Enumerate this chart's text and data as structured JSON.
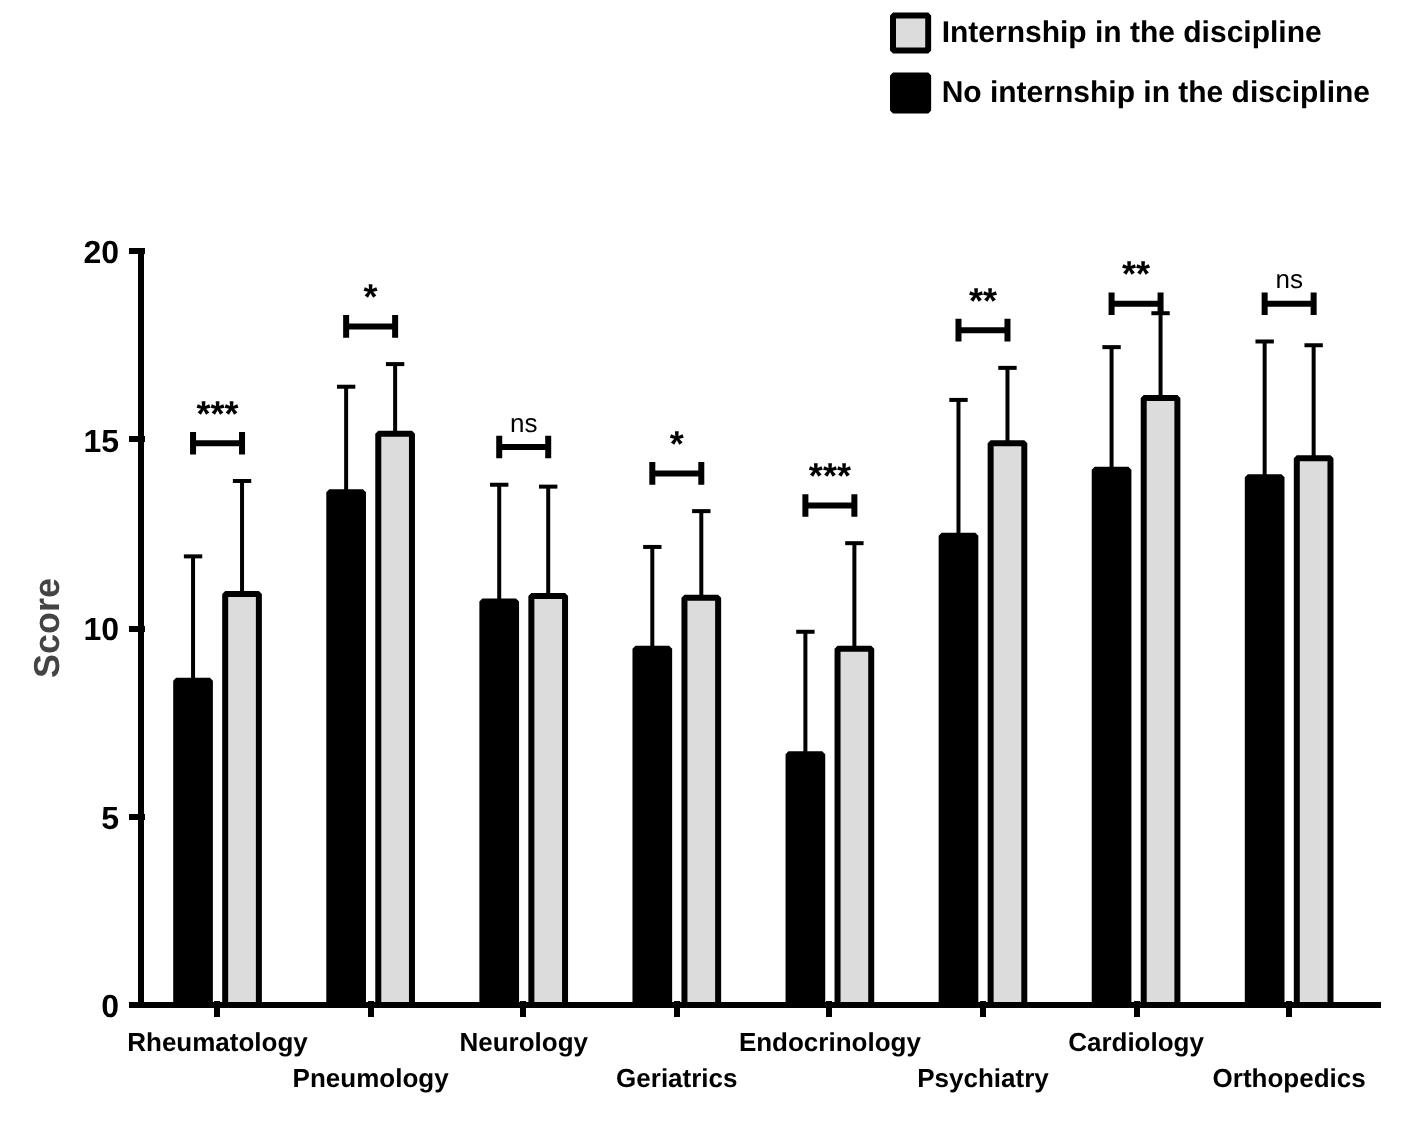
{
  "chart_data": {
    "type": "bar",
    "ylabel": "Score",
    "categories": [
      "Rheumatology",
      "Pneumology",
      "Neurology",
      "Geriatrics",
      "Endocrinology",
      "Psychiatry",
      "Cardiology",
      "Orthopedics"
    ],
    "series": [
      {
        "name": "No internship in the discipline",
        "color": "#000000",
        "values": [
          8.6,
          13.6,
          10.7,
          9.45,
          6.65,
          12.45,
          14.2,
          14.0
        ],
        "errors": [
          [
            8.6,
            11.9
          ],
          [
            13.6,
            16.4
          ],
          [
            10.7,
            13.8
          ],
          [
            9.45,
            12.15
          ],
          [
            6.65,
            9.9
          ],
          [
            12.45,
            16.05
          ],
          [
            14.2,
            17.45
          ],
          [
            14.0,
            17.6
          ]
        ]
      },
      {
        "name": "Internship in the discipline",
        "color": "#dcdcdc",
        "values": [
          10.9,
          15.15,
          10.85,
          10.8,
          9.45,
          14.9,
          16.1,
          14.5
        ],
        "errors": [
          [
            10.9,
            13.9
          ],
          [
            15.15,
            17.0
          ],
          [
            10.85,
            13.75
          ],
          [
            10.8,
            13.1
          ],
          [
            9.45,
            12.25
          ],
          [
            14.9,
            16.9
          ],
          [
            16.1,
            18.35
          ],
          [
            14.5,
            17.5
          ]
        ]
      }
    ],
    "ylim": [
      0,
      20
    ],
    "yticks": [
      0,
      5,
      10,
      15,
      20
    ],
    "grid": false,
    "legend": "top right",
    "annotations": [
      "***",
      "*",
      "ns",
      "*",
      "***",
      "**",
      "**",
      "ns"
    ]
  }
}
